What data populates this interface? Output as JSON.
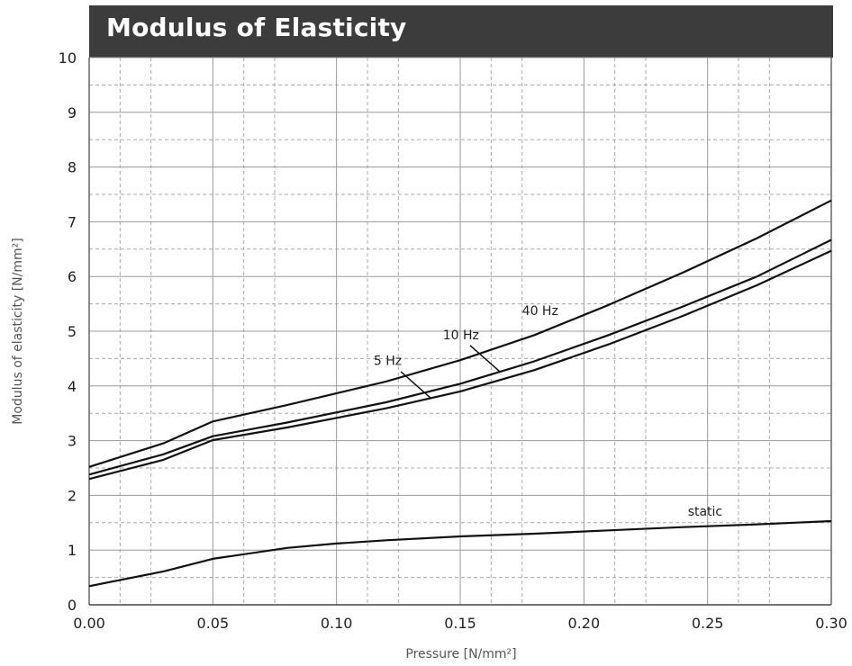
{
  "chart_data": {
    "type": "line",
    "title": "Modulus of Elasticity",
    "xlabel": "Pressure [N/mm²]",
    "ylabel": "Modulus of elasticity [N/mm²]",
    "xlim": [
      0,
      0.3
    ],
    "ylim": [
      0,
      10
    ],
    "x_ticks": [
      "0.00",
      "0.05",
      "0.10",
      "0.15",
      "0.20",
      "0.25",
      "0.30"
    ],
    "y_ticks": [
      "0",
      "1",
      "2",
      "3",
      "4",
      "5",
      "6",
      "7",
      "8",
      "9",
      "10"
    ],
    "grid": true,
    "series": [
      {
        "name": "40 Hz",
        "x": [
          0,
          0.03,
          0.05,
          0.08,
          0.12,
          0.15,
          0.18,
          0.21,
          0.24,
          0.27,
          0.3
        ],
        "y": [
          2.52,
          2.95,
          3.35,
          3.65,
          4.08,
          4.47,
          4.93,
          5.48,
          6.07,
          6.7,
          7.39
        ]
      },
      {
        "name": "10 Hz",
        "x": [
          0,
          0.03,
          0.05,
          0.08,
          0.12,
          0.15,
          0.18,
          0.21,
          0.24,
          0.27,
          0.3
        ],
        "y": [
          2.38,
          2.75,
          3.08,
          3.33,
          3.7,
          4.04,
          4.45,
          4.93,
          5.45,
          6.0,
          6.67
        ]
      },
      {
        "name": "5 Hz",
        "x": [
          0,
          0.03,
          0.05,
          0.08,
          0.12,
          0.15,
          0.18,
          0.21,
          0.24,
          0.27,
          0.3
        ],
        "y": [
          2.3,
          2.65,
          3.01,
          3.24,
          3.59,
          3.9,
          4.29,
          4.76,
          5.28,
          5.84,
          6.47
        ]
      },
      {
        "name": "static",
        "x": [
          0,
          0.03,
          0.05,
          0.08,
          0.1,
          0.12,
          0.15,
          0.18,
          0.21,
          0.24,
          0.27,
          0.3
        ],
        "y": [
          0.34,
          0.61,
          0.84,
          1.04,
          1.12,
          1.18,
          1.25,
          1.3,
          1.36,
          1.42,
          1.47,
          1.53
        ]
      }
    ]
  }
}
